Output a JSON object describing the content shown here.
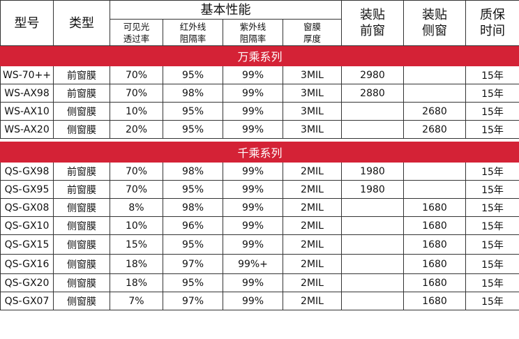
{
  "header": {
    "model": "型号",
    "type": "类型",
    "basic_performance": "基本性能",
    "vlt": [
      "可见光",
      "透过率"
    ],
    "irr": [
      "红外线",
      "阻隔率"
    ],
    "uvr": [
      "紫外线",
      "阻隔率"
    ],
    "thickness": [
      "窗膜",
      "厚度"
    ],
    "front_install": [
      "装贴",
      "前窗"
    ],
    "side_install": [
      "装贴",
      "侧窗"
    ],
    "warranty": [
      "质保",
      "时间"
    ]
  },
  "sections": [
    {
      "title": "万乘系列",
      "rows": [
        {
          "model": "WS-70++",
          "type": "前窗膜",
          "vlt": "70%",
          "irr": "95%",
          "uvr": "99%",
          "thickness": "3MIL",
          "front": "2980",
          "side": "",
          "warranty": "15年"
        },
        {
          "model": "WS-AX98",
          "type": "前窗膜",
          "vlt": "70%",
          "irr": "98%",
          "uvr": "99%",
          "thickness": "3MIL",
          "front": "2880",
          "side": "",
          "warranty": "15年"
        },
        {
          "model": "WS-AX10",
          "type": "侧窗膜",
          "vlt": "10%",
          "irr": "95%",
          "uvr": "99%",
          "thickness": "3MIL",
          "front": "",
          "side": "2680",
          "warranty": "15年"
        },
        {
          "model": "WS-AX20",
          "type": "侧窗膜",
          "vlt": "20%",
          "irr": "95%",
          "uvr": "99%",
          "thickness": "3MIL",
          "front": "",
          "side": "2680",
          "warranty": "15年"
        }
      ]
    },
    {
      "title": "千乘系列",
      "rows": [
        {
          "model": "QS-GX98",
          "type": "前窗膜",
          "vlt": "70%",
          "irr": "98%",
          "uvr": "99%",
          "thickness": "2MIL",
          "front": "1980",
          "side": "",
          "warranty": "15年"
        },
        {
          "model": "QS-GX95",
          "type": "前窗膜",
          "vlt": "70%",
          "irr": "95%",
          "uvr": "99%",
          "thickness": "2MIL",
          "front": "1980",
          "side": "",
          "warranty": "15年"
        },
        {
          "model": "QS-GX08",
          "type": "侧窗膜",
          "vlt": "8%",
          "irr": "98%",
          "uvr": "99%",
          "thickness": "2MIL",
          "front": "",
          "side": "1680",
          "warranty": "15年"
        },
        {
          "model": "QS-GX10",
          "type": "侧窗膜",
          "vlt": "10%",
          "irr": "96%",
          "uvr": "99%",
          "thickness": "2MIL",
          "front": "",
          "side": "1680",
          "warranty": "15年"
        },
        {
          "model": "QS-GX15",
          "type": "侧窗膜",
          "vlt": "15%",
          "irr": "95%",
          "uvr": "99%",
          "thickness": "2MIL",
          "front": "",
          "side": "1680",
          "warranty": "15年"
        },
        {
          "model": "QS-GX16",
          "type": "侧窗膜",
          "vlt": "18%",
          "irr": "97%",
          "uvr": "99%+",
          "thickness": "2MIL",
          "front": "",
          "side": "1680",
          "warranty": "15年"
        },
        {
          "model": "QS-GX20",
          "type": "侧窗膜",
          "vlt": "18%",
          "irr": "95%",
          "uvr": "99%",
          "thickness": "2MIL",
          "front": "",
          "side": "1680",
          "warranty": "15年"
        },
        {
          "model": "QS-GX07",
          "type": "侧窗膜",
          "vlt": "7%",
          "irr": "97%",
          "uvr": "99%",
          "thickness": "2MIL",
          "front": "",
          "side": "1680",
          "warranty": "15年"
        }
      ]
    }
  ],
  "colors": {
    "section_band": "#d42236",
    "section_text": "#ffffff",
    "border": "#333333"
  }
}
